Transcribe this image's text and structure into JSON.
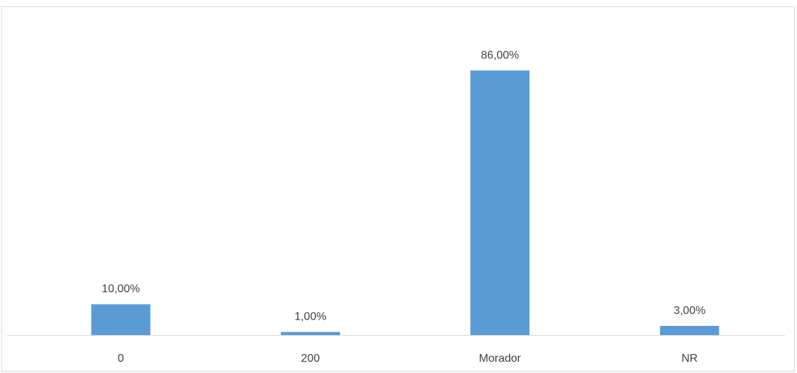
{
  "chart_data": {
    "type": "bar",
    "categories": [
      "0",
      "200",
      "Morador",
      "NR"
    ],
    "values": [
      10,
      1,
      86,
      3
    ],
    "data_labels": [
      "10,00%",
      "1,00%",
      "86,00%",
      "3,00%"
    ],
    "unit": "%",
    "ylim": [
      0,
      100
    ],
    "grid": false,
    "legend": "none",
    "bar_color": "#5b9bd5"
  }
}
